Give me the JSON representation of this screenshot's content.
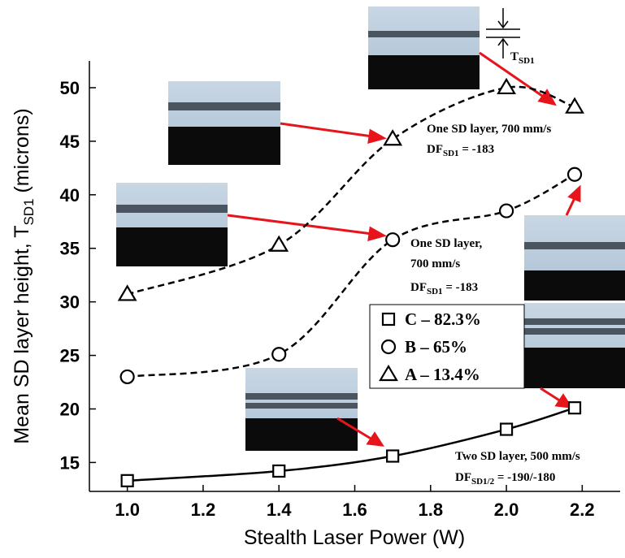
{
  "chart_data": {
    "type": "scatter",
    "x_label": "Stealth Laser Power (W)",
    "y_label": {
      "main": "Mean SD layer height, T",
      "sub": "SD1",
      "unit": "(microns)"
    },
    "x": [
      1.0,
      1.4,
      1.7,
      2.0,
      2.18
    ],
    "series": [
      {
        "name": "C – 82.3%",
        "marker": "square",
        "line_style": "solid",
        "color": "#000000",
        "values": [
          13.3,
          14.2,
          15.6,
          18.1,
          20.1
        ]
      },
      {
        "name": "B – 65%",
        "marker": "circle",
        "line_style": "dashed",
        "color": "#000000",
        "values": [
          23.0,
          25.1,
          35.8,
          38.5,
          41.9
        ]
      },
      {
        "name": "A – 13.4%",
        "marker": "triangle",
        "line_style": "dashed",
        "color": "#000000",
        "values": [
          30.7,
          35.3,
          45.2,
          50.0,
          48.2
        ]
      }
    ],
    "xlim": [
      0.9,
      2.3
    ],
    "ylim": [
      12.3,
      52.5
    ],
    "xticks": [
      {
        "value": 1,
        "label": "1.0"
      },
      {
        "value": 1.2,
        "label": "1.2"
      },
      {
        "value": 1.4,
        "label": "1.4"
      },
      {
        "value": 1.6,
        "label": "1.6"
      },
      {
        "value": 1.8,
        "label": "1.8"
      },
      {
        "value": 2,
        "label": "2.0"
      },
      {
        "value": 2.2,
        "label": "2.2"
      }
    ],
    "yticks": [
      15,
      20,
      25,
      30,
      35,
      40,
      45,
      50
    ],
    "annotations": [
      {
        "text": "One SD layer, 700 mm/s"
      },
      {
        "text": "DF",
        "sub": "SD1",
        "text2": "= -183"
      },
      {
        "text": "One SD layer,"
      },
      {
        "text": "700 mm/s"
      },
      {
        "text": "DF",
        "sub": "SD1",
        "text2": "= -183"
      },
      {
        "text": "Two SD layer, 500 mm/s"
      },
      {
        "text": "DF",
        "sub": "SD1/2",
        "text2": "= -190/-180"
      },
      {
        "text": "T",
        "sub": "SD1"
      }
    ]
  }
}
